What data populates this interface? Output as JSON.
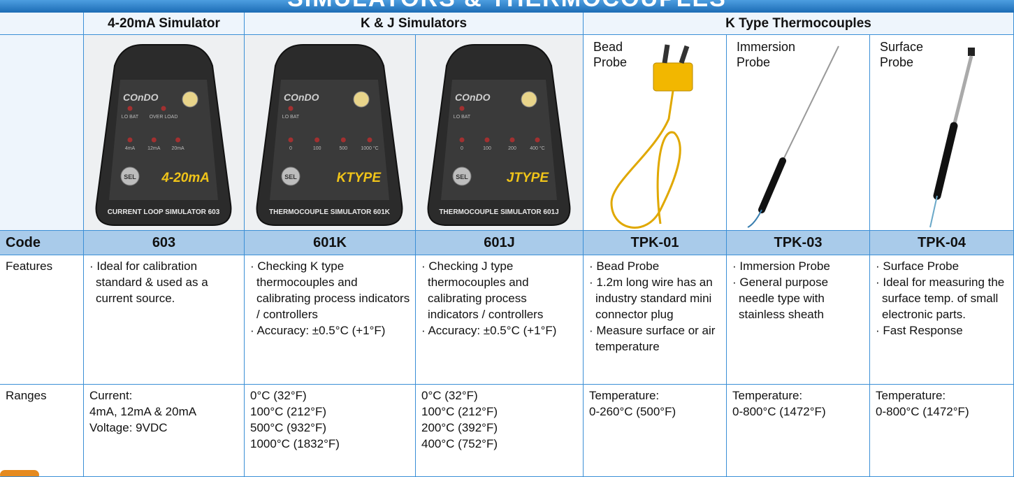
{
  "header": {
    "title": "SIMULATORS & THERMOCOUPLES"
  },
  "table": {
    "groups": [
      {
        "label": "4-20mA Simulator",
        "span": 1
      },
      {
        "label": "K & J Simulators",
        "span": 2
      },
      {
        "label": "K Type Thermocouples",
        "span": 3
      }
    ],
    "row_labels": {
      "code": "Code",
      "features": "Features",
      "ranges": "Ranges"
    },
    "products": [
      {
        "device": {
          "brand": "COnDO",
          "leds": [
            "LO BAT",
            "OVER LOAD",
            "4mA",
            "12mA",
            "20mA"
          ],
          "button": "SEL",
          "badge": "4-20mA",
          "footer": "CURRENT LOOP SIMULATOR 603"
        },
        "code": "603",
        "features": [
          "· Ideal for calibration standard & used as a current source."
        ],
        "ranges": [
          "Current:",
          "4mA, 12mA & 20mA",
          "Voltage: 9VDC"
        ]
      },
      {
        "device": {
          "brand": "COnDO",
          "leds": [
            "LO BAT",
            "0",
            "100",
            "500",
            "1000 °C"
          ],
          "button": "SEL",
          "badge": "KTYPE",
          "footer": "THERMOCOUPLE SIMULATOR 601K"
        },
        "code": "601K",
        "features": [
          "· Checking K type thermocouples and calibrating process indicators / controllers",
          "· Accuracy: ±0.5°C (+1°F)"
        ],
        "ranges": [
          "0°C (32°F)",
          "100°C (212°F)",
          "500°C (932°F)",
          "1000°C (1832°F)"
        ]
      },
      {
        "device": {
          "brand": "COnDO",
          "leds": [
            "LO BAT",
            "0",
            "100",
            "200",
            "400 °C"
          ],
          "button": "SEL",
          "badge": "JTYPE",
          "footer": "THERMOCOUPLE SIMULATOR 601J"
        },
        "code": "601J",
        "features": [
          "· Checking J type thermocouples and calibrating process indicators / controllers",
          "· Accuracy: ±0.5°C (+1°F)"
        ],
        "ranges": [
          "0°C (32°F)",
          "100°C (212°F)",
          "200°C (392°F)",
          "400°C (752°F)"
        ]
      },
      {
        "probe_label": [
          "Bead",
          "Probe"
        ],
        "code": "TPK-01",
        "features": [
          "· Bead Probe",
          "· 1.2m long wire has an industry standard mini connector plug",
          "· Measure surface or air temperature"
        ],
        "ranges": [
          "Temperature:",
          "0-260°C (500°F)"
        ]
      },
      {
        "probe_label": [
          "Immersion",
          "Probe"
        ],
        "code": "TPK-03",
        "features": [
          "· Immersion Probe",
          "· General purpose needle type with stainless sheath"
        ],
        "ranges": [
          "Temperature:",
          "0-800°C (1472°F)"
        ]
      },
      {
        "probe_label": [
          "Surface",
          "Probe"
        ],
        "code": "TPK-04",
        "features": [
          "· Surface Probe",
          "· Ideal for measuring the surface temp. of small electronic parts.",
          "· Fast Response"
        ],
        "ranges": [
          "Temperature:",
          "0-800°C (1472°F)"
        ]
      }
    ]
  }
}
